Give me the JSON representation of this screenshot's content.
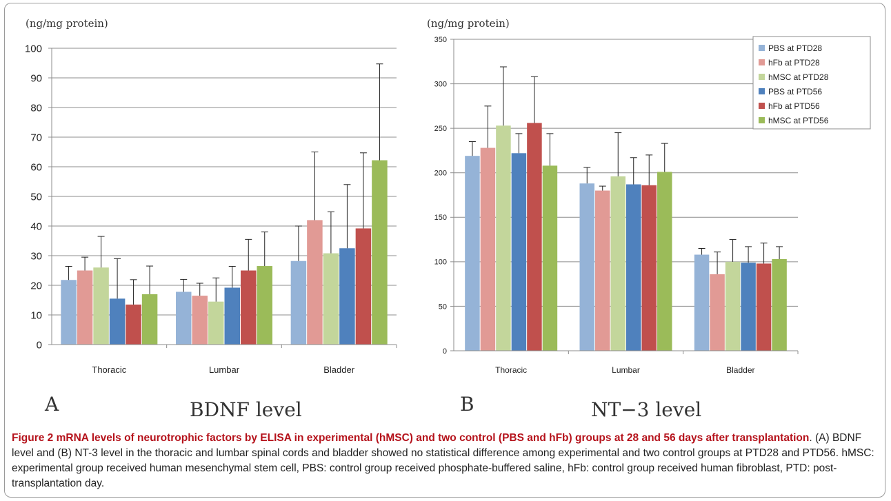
{
  "colors": {
    "PBS at PTD28": "#95b3d7",
    "hFb at PTD28": "#e19a95",
    "hMSC at PTD28": "#c3d69b",
    "PBS at PTD56": "#4f81bd",
    "hFb at PTD56": "#c0504d",
    "hMSC at PTD56": "#9bbb59"
  },
  "panels": [
    {
      "letter": "A",
      "title": "BDNF level"
    },
    {
      "letter": "B",
      "title": "NT−3 level"
    }
  ],
  "caption": {
    "bold": "Figure 2 mRNA levels of neurotrophic factors by ELISA in experimental (hMSC) and two control (PBS and hFb) groups at 28 and 56 days after transplantation",
    "text": ". (A) BDNF level and (B) NT-3 level in the thoracic and lumbar spinal cords and bladder showed no statistical difference among experimental and two control groups at PTD28 and PTD56. hMSC: experimental group received human mesenchymal stem cell, PBS: control group received phosphate-buffered saline, hFb: control group received human fibroblast, PTD: post-transplantation day."
  },
  "chart_data": [
    {
      "type": "bar",
      "title": "BDNF level",
      "ylabel": "(ng/mg protein)",
      "ylim": [
        0,
        100
      ],
      "yticks": [
        0,
        10,
        20,
        30,
        40,
        50,
        60,
        70,
        80,
        90,
        100
      ],
      "grid": true,
      "legend": "none",
      "categories": [
        "Thoracic",
        "Lumbar",
        "Bladder"
      ],
      "series": [
        {
          "name": "PBS at PTD28",
          "values": [
            21.8,
            17.8,
            28.2
          ],
          "errors": [
            4.6,
            4.2,
            11.8
          ]
        },
        {
          "name": "hFb at PTD28",
          "values": [
            25.0,
            16.5,
            42.0
          ],
          "errors": [
            4.5,
            4.2,
            23.0
          ]
        },
        {
          "name": "hMSC at PTD28",
          "values": [
            26.0,
            14.5,
            30.8
          ],
          "errors": [
            10.5,
            8.0,
            14.0
          ]
        },
        {
          "name": "PBS at PTD56",
          "values": [
            15.5,
            19.2,
            32.5
          ],
          "errors": [
            13.5,
            7.2,
            21.5
          ]
        },
        {
          "name": "hFb at PTD56",
          "values": [
            13.5,
            25.0,
            39.2
          ],
          "errors": [
            8.4,
            10.5,
            25.5
          ]
        },
        {
          "name": "hMSC at PTD56",
          "values": [
            17.0,
            26.5,
            62.2
          ],
          "errors": [
            9.5,
            11.5,
            32.5
          ]
        }
      ]
    },
    {
      "type": "bar",
      "title": "NT-3 level",
      "ylabel": "(ng/mg protein)",
      "ylim": [
        0,
        350
      ],
      "yticks": [
        0,
        50,
        100,
        150,
        200,
        250,
        300,
        350
      ],
      "grid": true,
      "legend": "top-right",
      "categories": [
        "Thoracic",
        "Lumbar",
        "Bladder"
      ],
      "series": [
        {
          "name": "PBS at PTD28",
          "values": [
            219,
            188,
            108
          ],
          "errors": [
            16,
            18,
            7
          ]
        },
        {
          "name": "hFb at PTD28",
          "values": [
            228,
            180,
            86
          ],
          "errors": [
            47,
            5,
            25
          ]
        },
        {
          "name": "hMSC at PTD28",
          "values": [
            253,
            196,
            100
          ],
          "errors": [
            66,
            49,
            25
          ]
        },
        {
          "name": "PBS at PTD56",
          "values": [
            222,
            187,
            99
          ],
          "errors": [
            22,
            30,
            18
          ]
        },
        {
          "name": "hFb at PTD56",
          "values": [
            256,
            186,
            98
          ],
          "errors": [
            52,
            34,
            23
          ]
        },
        {
          "name": "hMSC at PTD56",
          "values": [
            208,
            201,
            103
          ],
          "errors": [
            36,
            32,
            14
          ]
        }
      ]
    }
  ]
}
